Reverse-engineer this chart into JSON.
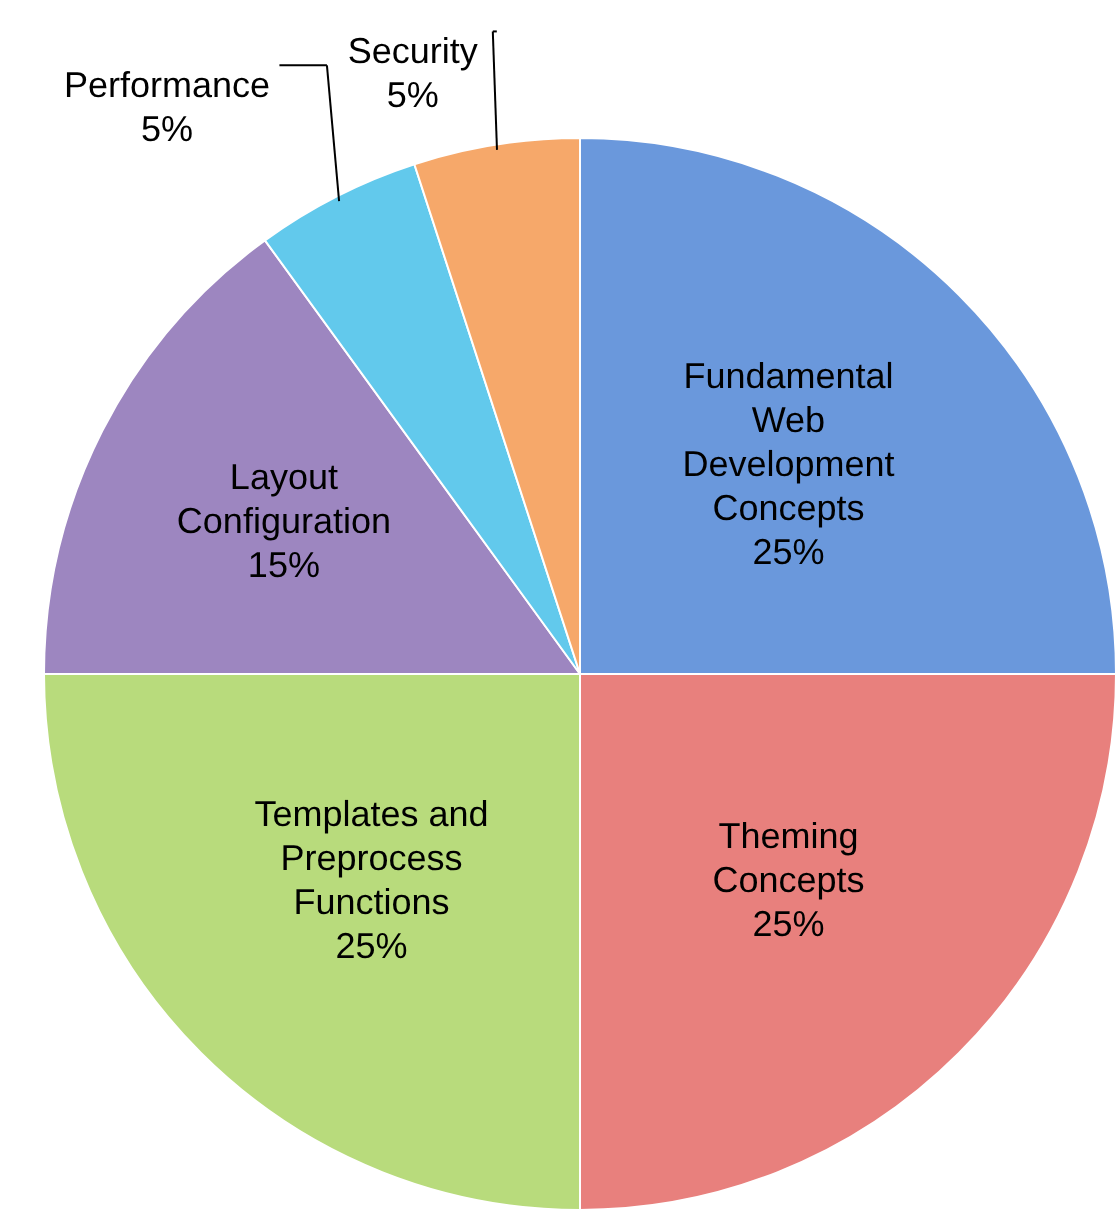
{
  "chart_data": {
    "type": "pie",
    "categories": [
      "Fundamental Web Development Concepts",
      "Theming Concepts",
      "Templates and Preprocess Functions",
      "Layout Configuration",
      "Performance",
      "Security"
    ],
    "values": [
      25,
      25,
      25,
      15,
      5,
      5
    ],
    "value_labels": [
      "25%",
      "25%",
      "25%",
      "15%",
      "5%",
      "5%"
    ],
    "colors": [
      "#6a98dc",
      "#e8807d",
      "#b8db7c",
      "#9d86c0",
      "#62c9ec",
      "#f6a86a"
    ]
  }
}
